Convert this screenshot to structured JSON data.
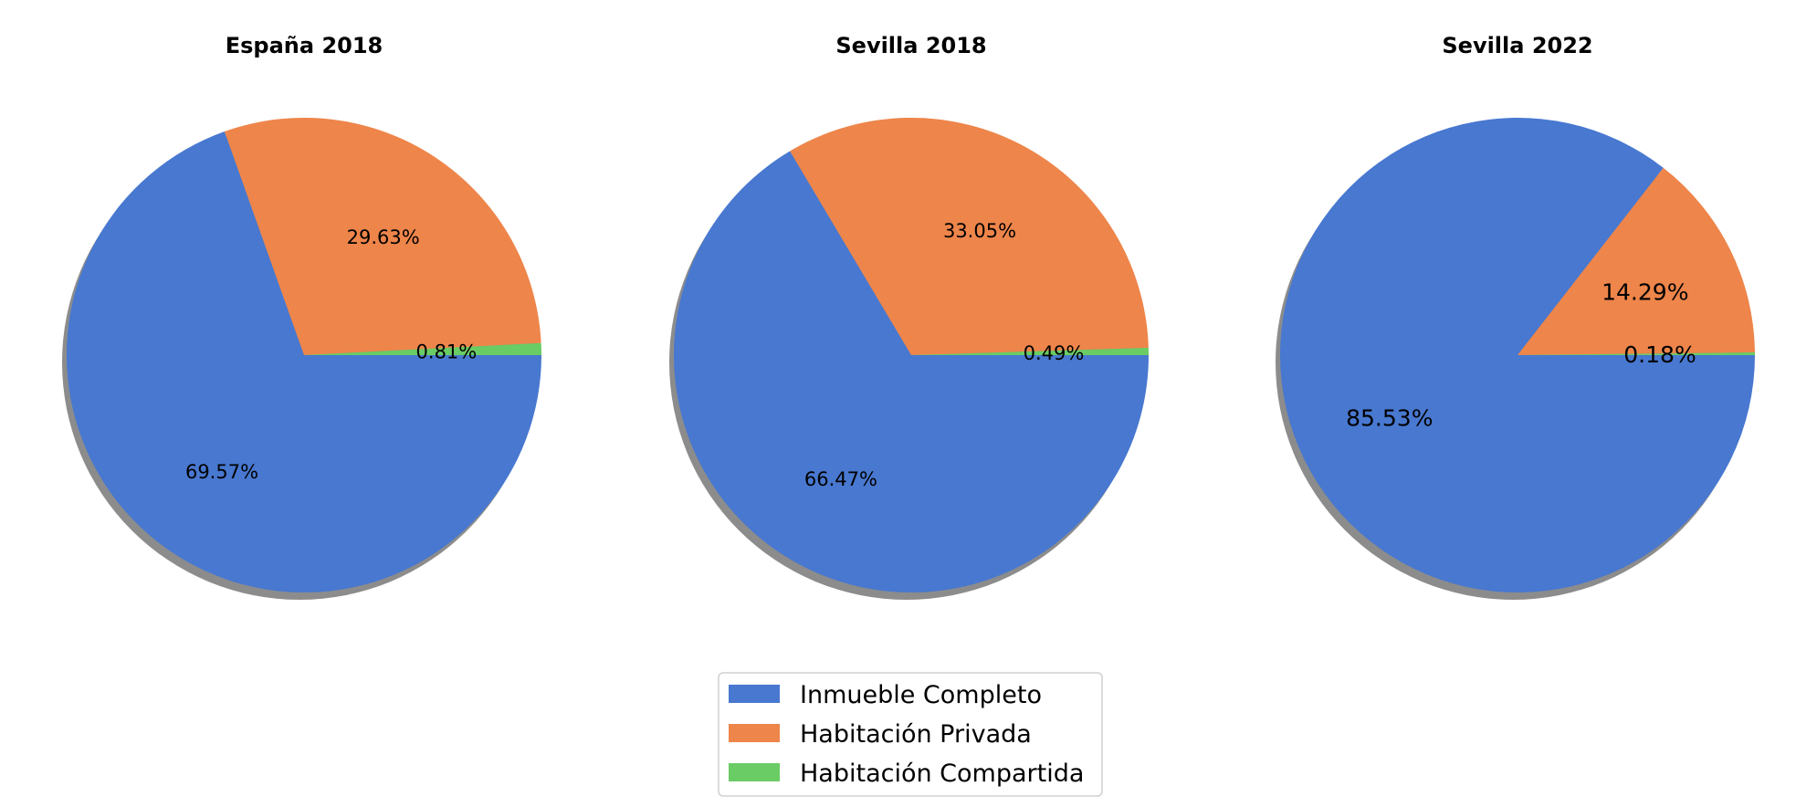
{
  "chart_data": [
    {
      "type": "pie",
      "title": "España 2018",
      "categories": [
        "Inmueble Completo",
        "Habitación Privada",
        "Habitación Compartida"
      ],
      "values": [
        69.57,
        29.63,
        0.81
      ],
      "labels": [
        "69.57%",
        "29.63%",
        "0.81%"
      ],
      "shadow": true
    },
    {
      "type": "pie",
      "title": "Sevilla 2018",
      "categories": [
        "Inmueble Completo",
        "Habitación Privada",
        "Habitación Compartida"
      ],
      "values": [
        66.47,
        33.05,
        0.49
      ],
      "labels": [
        "66.47%",
        "33.05%",
        "0.49%"
      ],
      "shadow": true
    },
    {
      "type": "pie",
      "title": "Sevilla 2022",
      "categories": [
        "Inmueble Completo",
        "Habitación Privada",
        "Habitación Compartida"
      ],
      "values": [
        85.53,
        14.29,
        0.18
      ],
      "labels": [
        "85.53%",
        "14.29%",
        "0.18%"
      ],
      "shadow": true
    }
  ],
  "legend": {
    "placement": "bottom-center",
    "entries": [
      {
        "label": "Inmueble Completo",
        "color": "#4878d0"
      },
      {
        "label": "Habitación Privada",
        "color": "#ee854a"
      },
      {
        "label": "Habitación Compartida",
        "color": "#6acc64"
      }
    ]
  },
  "colors": {
    "inmueble": "#4878d0",
    "privada": "#ee854a",
    "compartida": "#6acc64",
    "shadow": "#8c8c8c"
  }
}
